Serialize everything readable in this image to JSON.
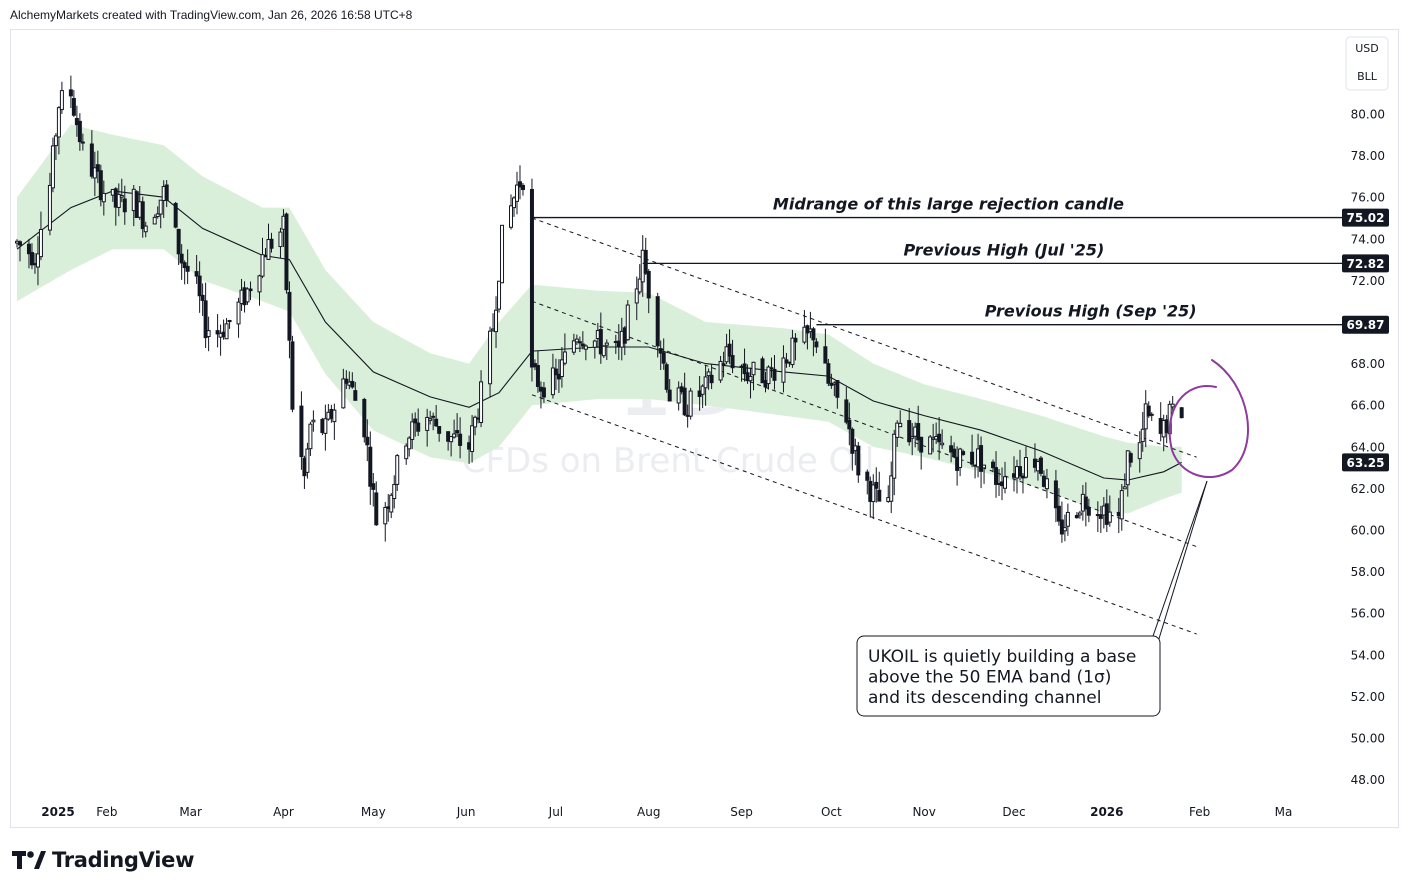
{
  "header": "AlchemyMarkets created with TradingView.com, Jan 26, 2026 16:58 UTC+8",
  "watermark": {
    "big": "1D",
    "sub": "CFDs on Brent Crude Oil"
  },
  "currency": [
    "USD",
    "BLL"
  ],
  "brand": "TradingView",
  "colors": {
    "band": "#d9efd9",
    "candle": "#131722",
    "ema": "#131722",
    "circle": "#8e3a9e",
    "badge": "#131722"
  },
  "chart_data": {
    "type": "candlestick",
    "symbol": "UKOIL",
    "timeframe": "1D",
    "x_tick_labels": [
      "2025",
      "Feb",
      "Mar",
      "Apr",
      "May",
      "Jun",
      "Jul",
      "Aug",
      "Sep",
      "Oct",
      "Nov",
      "Dec",
      "2026",
      "Feb",
      "Ma"
    ],
    "y_tick_labels": [
      "48.00",
      "50.00",
      "52.00",
      "54.00",
      "56.00",
      "58.00",
      "60.00",
      "62.00",
      "64.00",
      "66.00",
      "68.00",
      "72.00",
      "74.00",
      "76.00",
      "78.00",
      "80.00"
    ],
    "ylim": [
      46.5,
      83
    ],
    "price_path": [
      [
        "2025-01-02",
        73.8
      ],
      [
        "2025-01-08",
        73.2
      ],
      [
        "2025-01-13",
        76.5
      ],
      [
        "2025-01-16",
        80.5
      ],
      [
        "2025-01-20",
        81.0
      ],
      [
        "2025-01-24",
        78.2
      ],
      [
        "2025-01-30",
        76.5
      ],
      [
        "2025-02-04",
        75.6
      ],
      [
        "2025-02-10",
        75.9
      ],
      [
        "2025-02-14",
        74.8
      ],
      [
        "2025-02-20",
        76.2
      ],
      [
        "2025-02-26",
        73.0
      ],
      [
        "2025-03-03",
        71.6
      ],
      [
        "2025-03-06",
        69.8
      ],
      [
        "2025-03-10",
        69.5
      ],
      [
        "2025-03-14",
        70.0
      ],
      [
        "2025-03-20",
        71.5
      ],
      [
        "2025-03-26",
        73.5
      ],
      [
        "2025-04-01",
        74.5
      ],
      [
        "2025-04-04",
        66.0
      ],
      [
        "2025-04-08",
        62.5
      ],
      [
        "2025-04-10",
        65.0
      ],
      [
        "2025-04-15",
        64.8
      ],
      [
        "2025-04-22",
        67.5
      ],
      [
        "2025-04-28",
        65.0
      ],
      [
        "2025-05-02",
        60.5
      ],
      [
        "2025-05-06",
        61.5
      ],
      [
        "2025-05-12",
        64.5
      ],
      [
        "2025-05-19",
        65.5
      ],
      [
        "2025-05-26",
        64.5
      ],
      [
        "2025-06-02",
        64.0
      ],
      [
        "2025-06-06",
        66.5
      ],
      [
        "2025-06-10",
        69.8
      ],
      [
        "2025-06-13",
        74.0
      ],
      [
        "2025-06-18",
        76.5
      ],
      [
        "2025-06-20",
        77.0
      ],
      [
        "2025-06-23",
        67.5
      ],
      [
        "2025-06-26",
        67.0
      ],
      [
        "2025-07-01",
        67.2
      ],
      [
        "2025-07-08",
        69.5
      ],
      [
        "2025-07-15",
        69.0
      ],
      [
        "2025-07-22",
        68.5
      ],
      [
        "2025-07-30",
        73.0
      ],
      [
        "2025-08-04",
        69.5
      ],
      [
        "2025-08-08",
        66.5
      ],
      [
        "2025-08-14",
        66.0
      ],
      [
        "2025-08-20",
        66.8
      ],
      [
        "2025-08-27",
        68.5
      ],
      [
        "2025-09-03",
        67.5
      ],
      [
        "2025-09-10",
        67.5
      ],
      [
        "2025-09-17",
        68.5
      ],
      [
        "2025-09-25",
        69.5
      ],
      [
        "2025-09-30",
        67.0
      ],
      [
        "2025-10-06",
        65.5
      ],
      [
        "2025-10-10",
        63.0
      ],
      [
        "2025-10-16",
        61.5
      ],
      [
        "2025-10-20",
        61.0
      ],
      [
        "2025-10-23",
        65.5
      ],
      [
        "2025-10-29",
        64.5
      ],
      [
        "2025-11-05",
        64.0
      ],
      [
        "2025-11-12",
        63.5
      ],
      [
        "2025-11-19",
        63.5
      ],
      [
        "2025-11-25",
        62.5
      ],
      [
        "2025-12-02",
        63.0
      ],
      [
        "2025-12-09",
        63.5
      ],
      [
        "2025-12-16",
        60.0
      ],
      [
        "2025-12-19",
        60.5
      ],
      [
        "2025-12-24",
        61.5
      ],
      [
        "2025-12-31",
        61.0
      ],
      [
        "2026-01-05",
        60.5
      ],
      [
        "2026-01-08",
        63.5
      ],
      [
        "2026-01-12",
        64.0
      ],
      [
        "2026-01-14",
        65.5
      ],
      [
        "2026-01-19",
        64.5
      ],
      [
        "2026-01-22",
        65.5
      ],
      [
        "2026-01-26",
        65.8
      ]
    ],
    "ema_50": [
      [
        "2025-01-02",
        73.5
      ],
      [
        "2025-01-20",
        75.5
      ],
      [
        "2025-02-03",
        76.3
      ],
      [
        "2025-02-20",
        76.0
      ],
      [
        "2025-03-05",
        74.5
      ],
      [
        "2025-03-25",
        73.2
      ],
      [
        "2025-04-03",
        73.0
      ],
      [
        "2025-04-15",
        70.0
      ],
      [
        "2025-05-01",
        67.6
      ],
      [
        "2025-05-20",
        66.4
      ],
      [
        "2025-06-02",
        65.9
      ],
      [
        "2025-06-12",
        66.6
      ],
      [
        "2025-06-23",
        68.6
      ],
      [
        "2025-07-15",
        68.8
      ],
      [
        "2025-08-01",
        68.8
      ],
      [
        "2025-08-20",
        68.0
      ],
      [
        "2025-09-15",
        67.6
      ],
      [
        "2025-09-30",
        67.4
      ],
      [
        "2025-10-15",
        66.2
      ],
      [
        "2025-11-01",
        65.5
      ],
      [
        "2025-11-20",
        64.8
      ],
      [
        "2025-12-10",
        63.8
      ],
      [
        "2025-12-31",
        62.5
      ],
      [
        "2026-01-08",
        62.4
      ],
      [
        "2026-01-20",
        62.8
      ],
      [
        "2026-01-26",
        63.25
      ]
    ],
    "band_upper": [
      [
        "2025-01-02",
        76.0
      ],
      [
        "2025-01-20",
        79.5
      ],
      [
        "2025-02-03",
        79.0
      ],
      [
        "2025-02-20",
        78.5
      ],
      [
        "2025-03-05",
        77.0
      ],
      [
        "2025-03-25",
        75.5
      ],
      [
        "2025-04-03",
        75.5
      ],
      [
        "2025-04-15",
        72.5
      ],
      [
        "2025-05-01",
        70.0
      ],
      [
        "2025-05-20",
        68.5
      ],
      [
        "2025-06-02",
        68.0
      ],
      [
        "2025-06-12",
        70.0
      ],
      [
        "2025-06-23",
        71.8
      ],
      [
        "2025-07-15",
        71.5
      ],
      [
        "2025-08-01",
        71.4
      ],
      [
        "2025-08-20",
        70.0
      ],
      [
        "2025-09-15",
        69.7
      ],
      [
        "2025-09-30",
        69.4
      ],
      [
        "2025-10-15",
        68.0
      ],
      [
        "2025-11-01",
        67.0
      ],
      [
        "2025-11-20",
        66.3
      ],
      [
        "2025-12-10",
        65.5
      ],
      [
        "2025-12-31",
        64.5
      ],
      [
        "2026-01-08",
        64.2
      ],
      [
        "2026-01-20",
        64.0
      ],
      [
        "2026-01-26",
        64.0
      ]
    ],
    "band_lower": [
      [
        "2025-01-02",
        71.0
      ],
      [
        "2025-01-20",
        72.5
      ],
      [
        "2025-02-03",
        73.5
      ],
      [
        "2025-02-20",
        73.5
      ],
      [
        "2025-03-05",
        72.0
      ],
      [
        "2025-03-25",
        71.0
      ],
      [
        "2025-04-03",
        70.5
      ],
      [
        "2025-04-15",
        67.5
      ],
      [
        "2025-05-01",
        64.8
      ],
      [
        "2025-05-20",
        63.5
      ],
      [
        "2025-06-02",
        63.2
      ],
      [
        "2025-06-12",
        64.0
      ],
      [
        "2025-06-23",
        66.0
      ],
      [
        "2025-07-15",
        66.3
      ],
      [
        "2025-08-01",
        66.3
      ],
      [
        "2025-08-20",
        66.0
      ],
      [
        "2025-09-15",
        65.5
      ],
      [
        "2025-09-30",
        65.2
      ],
      [
        "2025-10-15",
        64.0
      ],
      [
        "2025-11-01",
        63.5
      ],
      [
        "2025-11-20",
        62.8
      ],
      [
        "2025-12-10",
        62.0
      ],
      [
        "2025-12-31",
        60.8
      ],
      [
        "2026-01-08",
        60.8
      ],
      [
        "2026-01-20",
        61.5
      ],
      [
        "2026-01-26",
        61.8
      ]
    ],
    "channel_lines": [
      [
        [
          "2025-06-23",
          75.0
        ],
        [
          "2026-01-31",
          63.5
        ]
      ],
      [
        [
          "2025-06-23",
          71.0
        ],
        [
          "2026-01-31",
          59.2
        ]
      ],
      [
        [
          "2025-06-23",
          66.5
        ],
        [
          "2026-01-31",
          55.0
        ]
      ]
    ],
    "levels": [
      {
        "price": 75.02,
        "label": "75.02",
        "from": "2025-06-23",
        "note": "Midrange of this large rejection candle"
      },
      {
        "price": 72.82,
        "label": "72.82",
        "from": "2025-07-30",
        "note": "Previous High (Jul '25)"
      },
      {
        "price": 69.87,
        "label": "69.87",
        "from": "2025-09-26",
        "note": "Previous High (Sep '25)"
      }
    ],
    "last_price": {
      "price": 63.25,
      "label": "63.25"
    },
    "callout": [
      "UKOIL is quietly building a base",
      "above the 50 EMA band (1σ)",
      "and its descending channel"
    ]
  }
}
